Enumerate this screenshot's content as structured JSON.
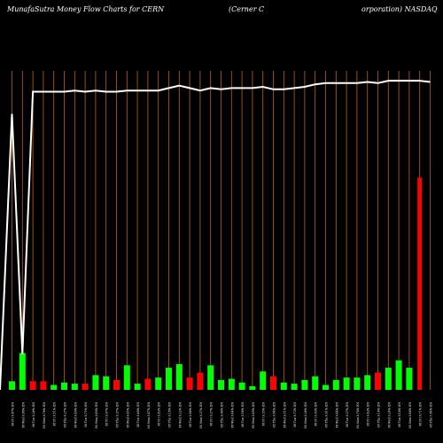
{
  "header": {
    "left": "MunafaSutra  Money Flow  Charts for CERN",
    "middle": "(Cerner C",
    "right": "orporation) NASDAQ"
  },
  "colors": {
    "background": "#000000",
    "grid": "#b8651e",
    "up": "#00ff00",
    "down": "#ff0000",
    "line": "#ffffff"
  },
  "chart_data": {
    "type": "bar",
    "categories": [
      "Fri 26 Nov 2021",
      "Wed 24 Nov 2021",
      "Tue 23 Nov 2021",
      "Mon 22 Nov 2021",
      "Fri 19 Nov 2021",
      "Thu 18 Nov 2021",
      "Wed 17 Nov 2021",
      "Tue 16 Nov 2021",
      "Mon 15 Nov 2021",
      "Fri 12 Nov 2021",
      "Thu 11 Nov 2021",
      "Wed 10 Nov 2021",
      "Tue 09 Nov 2021",
      "Mon 08 Nov 2021",
      "Fri 05 Nov 2021",
      "Thu 04 Nov 2021",
      "Wed 03 Nov 2021",
      "Tue 02 Nov 2021",
      "Mon 01 Nov 2021",
      "Fri 29 Oct 2021",
      "Thu 28 Oct 2021",
      "Wed 27 Oct 2021",
      "Tue 26 Oct 2021",
      "Mon 25 Oct 2021",
      "Fri 22 Oct 2021",
      "Thu 21 Oct 2021",
      "Wed 20 Oct 2021",
      "Tue 19 Oct 2021",
      "Mon 18 Oct 2021",
      "Fri 15 Oct 2021",
      "Thu 14 Oct 2021",
      "Wed 13 Oct 2021",
      "Tue 12 Oct 2021",
      "Mon 11 Oct 2021",
      "Fri 08 Oct 2021",
      "Thu 07 Oct 2021",
      "Wed 06 Oct 2021",
      "Tue 05 Oct 2021",
      "Mon 04 Oct 2021",
      "Fri 01 Oct 2021",
      "Thu 30 Sep 2021"
    ],
    "x_tick_labels": [
      "08 Fri 0.87% EN",
      "08 Wed 0.08% EN",
      "08 Tue 0.26% EN",
      "08 Mon 0.76% EN",
      "08 Fri 0.51% EN",
      "08 Thu 0.27% EN",
      "08 Wed 0.40% EN",
      "08 Tue 0.75% EN",
      "08 Mon 0.49% EN",
      "08 Fri 0.97% EN",
      "08 Thu 0.37% EN",
      "08 Wed 0.45% EN",
      "08 Tue 0.60% EN",
      "08 Mon 0.47% EN",
      "08 Fri 0.82% EN",
      "08 Thu 0.18% EN",
      "08 Wed 0.22% EN",
      "08 Tue 0.86% EN",
      "08 Mon 0.37% EN",
      "08 Fri 0.27% EN",
      "08 Thu 0.06% EN",
      "08 Wed 0.44% EN",
      "08 Tue 0.56% EN",
      "08 Mon 0.49% EN",
      "08 Fri 0.35% EN",
      "08 Thu 0.84% EN",
      "08 Wed 0.51% EN",
      "08 Tue 0.73% EN",
      "08 Mon 0.26% EN",
      "08 Fri 0.93% EN",
      "08 Thu 0.91% EN",
      "08 Wed 0.44% EN",
      "08 Tue 0.27% EN",
      "08 Mon 0.78% EN",
      "08 Fri 0.62% EN",
      "08 Thu 0.16% EN",
      "08 Wed 0.24% EN",
      "08 Tue 0.18% EN",
      "08 Mon 0.46% EN",
      "08 Fri 0.71% EN",
      "08 Thu 5.84% EN"
    ],
    "bar_values": [
      7,
      30,
      7,
      7,
      4,
      6,
      5,
      5,
      12,
      11,
      8,
      20,
      5,
      9,
      10,
      18,
      21,
      10,
      14,
      20,
      8,
      9,
      6,
      3,
      15,
      11,
      6,
      5,
      8,
      11,
      4,
      8,
      10,
      10,
      12,
      14,
      18,
      24,
      18,
      173,
      0
    ],
    "bar_directions": [
      "up",
      "up",
      "down",
      "down",
      "up",
      "up",
      "up",
      "down",
      "up",
      "up",
      "down",
      "up",
      "up",
      "down",
      "up",
      "up",
      "up",
      "down",
      "down",
      "up",
      "up",
      "up",
      "up",
      "up",
      "up",
      "down",
      "up",
      "up",
      "up",
      "up",
      "up",
      "up",
      "up",
      "up",
      "up",
      "down",
      "up",
      "up",
      "up",
      "down",
      "up"
    ],
    "line_values": [
      225,
      29,
      243,
      243,
      243,
      243,
      244,
      243,
      244,
      243,
      243,
      244,
      244,
      244,
      244,
      246,
      248,
      246,
      244,
      246,
      245,
      246,
      246,
      246,
      247,
      245,
      245,
      246,
      247,
      249,
      250,
      250,
      250,
      250,
      251,
      250,
      252,
      252,
      252,
      252,
      251
    ],
    "ylim": [
      0,
      260
    ],
    "xlabel": "",
    "ylabel": "",
    "grid": true
  }
}
